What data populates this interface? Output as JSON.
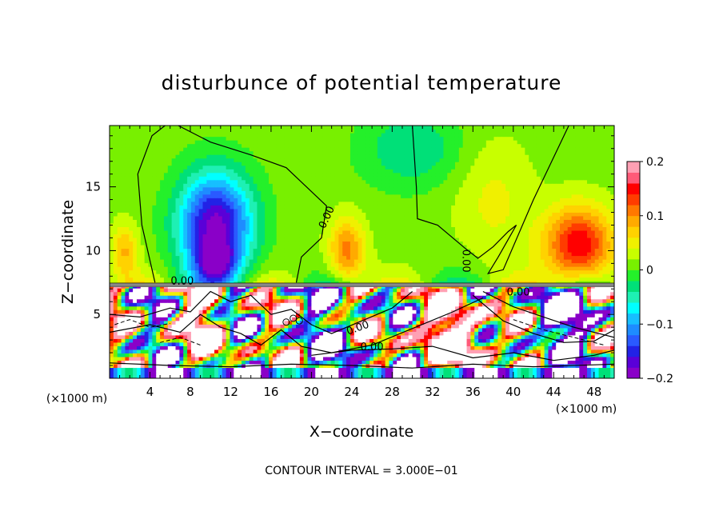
{
  "chart_data": {
    "type": "heatmap",
    "title": "disturbunce of potential temperature",
    "xlabel": "X−coordinate",
    "ylabel": "Z−coordinate",
    "x_unit": "(×1000 m)",
    "y_unit": "(×1000 m)",
    "footer": "CONTOUR INTERVAL = 3.000E−01",
    "xlim": [
      0,
      50
    ],
    "ylim": [
      0,
      19.8
    ],
    "x_ticks": [
      4,
      8,
      12,
      16,
      20,
      24,
      28,
      32,
      36,
      40,
      44,
      48
    ],
    "y_ticks": [
      5,
      10,
      15
    ],
    "colorbar": {
      "min": -0.2,
      "max": 0.2,
      "ticks": [
        "0.2",
        "0.1",
        "0",
        "−0.1",
        "−0.2"
      ],
      "tick_values": [
        0.2,
        0.1,
        0,
        -0.1,
        -0.2
      ],
      "colors": [
        "#8a00c8",
        "#5a00d8",
        "#2222e6",
        "#2a5aff",
        "#1e8cff",
        "#17bfff",
        "#00ffff",
        "#1ef0b4",
        "#00e078",
        "#24f02a",
        "#78f000",
        "#c8ff00",
        "#f0f000",
        "#ffd200",
        "#ffaa00",
        "#ff7800",
        "#ff3c00",
        "#ff0000",
        "#ff5a78",
        "#ffa0b4"
      ]
    },
    "contour_labels": [
      "0.00",
      "0.00",
      "0.00",
      "0.00",
      "0.00",
      "0.00"
    ],
    "grid": false,
    "legend": "right colorbar"
  }
}
